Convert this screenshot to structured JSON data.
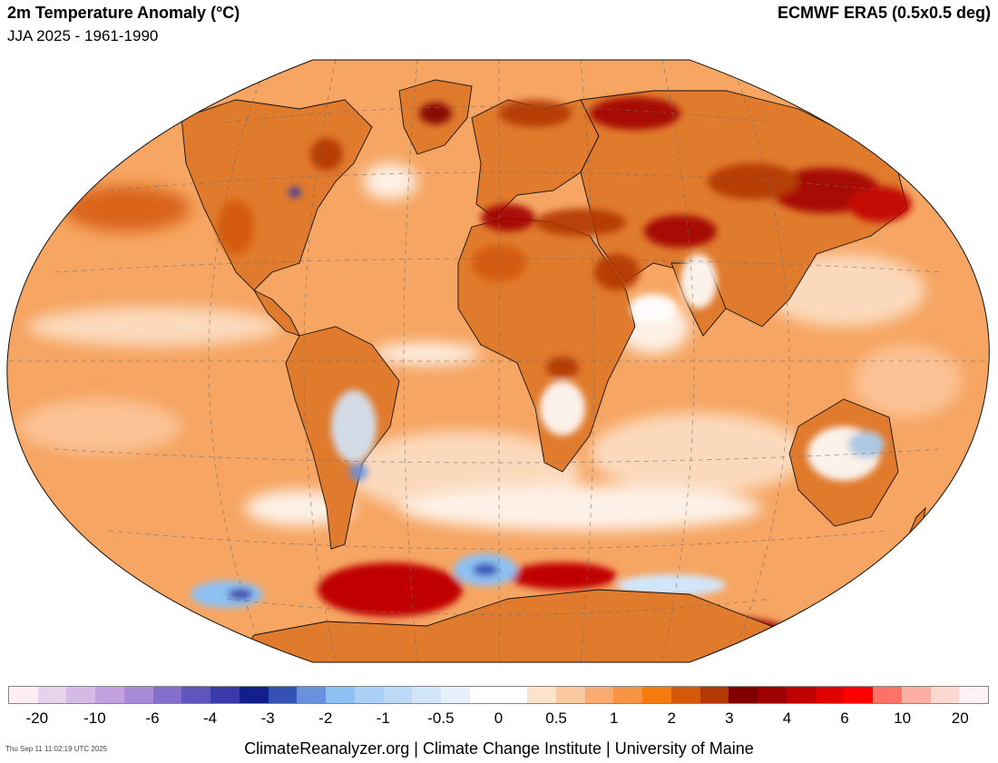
{
  "header": {
    "title": "2m Temperature Anomaly (°C)",
    "subtitle": "JJA 2025 - 1961-1990",
    "dataset": "ECMWF ERA5 (0.5x0.5 deg)"
  },
  "colors": {
    "ocean_base": "#f6a562",
    "land_base": "#e07a2c",
    "hot": "#a31a0a",
    "very_hot": "#c8100f",
    "neutral": "#ffffff",
    "cool": "#a9cdf2",
    "cold": "#4b6fc9",
    "grid": "#6e6e6e",
    "coast": "#111111"
  },
  "colorbar": {
    "swatches": [
      "#fdeef3",
      "#e8d2ec",
      "#d5b9e6",
      "#c3a1e0",
      "#a98ad8",
      "#8470cc",
      "#5e56bd",
      "#3a3aa8",
      "#121e8c",
      "#3551b6",
      "#6a91dd",
      "#8dc1f3",
      "#a9d0f6",
      "#bcdaf8",
      "#d2e6fb",
      "#e6f1fd",
      "#ffffff",
      "#ffffff",
      "#fde3cc",
      "#fcc89f",
      "#f9ab71",
      "#f79446",
      "#f37b0f",
      "#d4590a",
      "#b23806",
      "#800000",
      "#a00000",
      "#c00000",
      "#e00000",
      "#ff0000",
      "#ff7366",
      "#ffaea3",
      "#ffd9cf",
      "#fff2f4"
    ],
    "ticks": [
      "-20",
      "-10",
      "-6",
      "-4",
      "-3",
      "-2",
      "-1",
      "-0.5",
      "0",
      "0.5",
      "1",
      "2",
      "3",
      "4",
      "6",
      "10",
      "20"
    ]
  },
  "footer": {
    "timestamp": "Thu Sep 11 11:02:19 UTC 2025",
    "credit": "ClimateReanalyzer.org | Climate Change Institute | University of Maine"
  }
}
